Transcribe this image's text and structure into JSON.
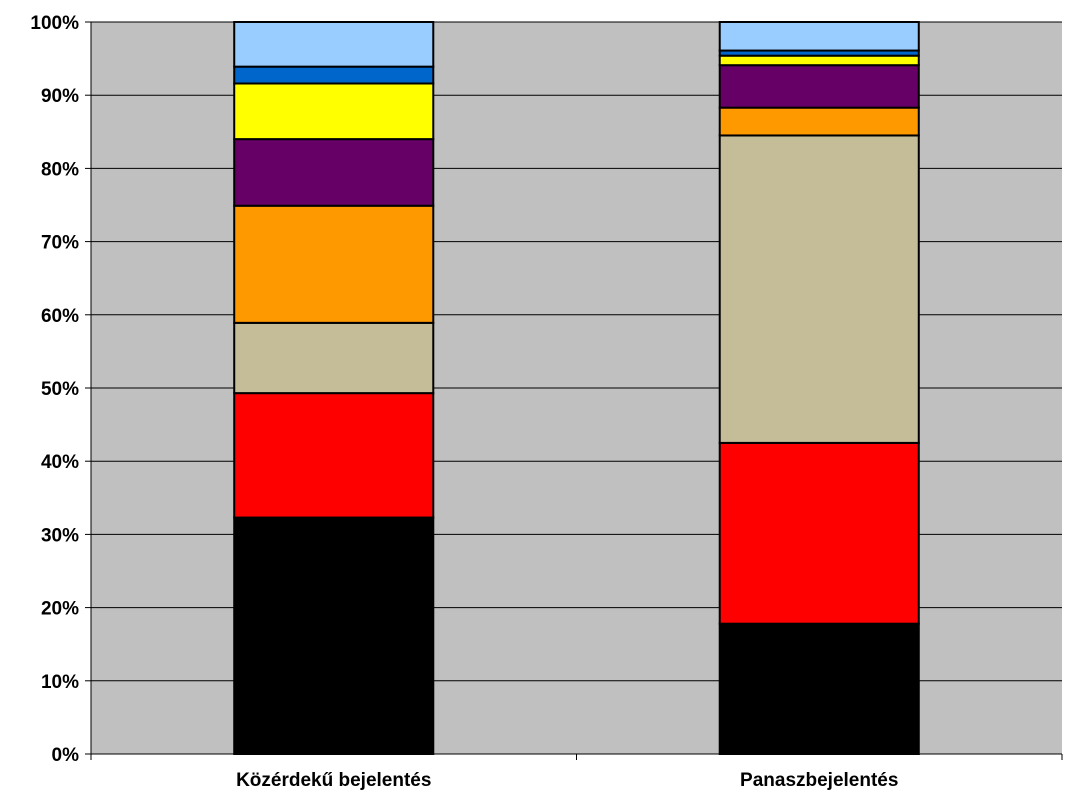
{
  "chart_data": {
    "type": "bar",
    "stacked": true,
    "percent": true,
    "categories": [
      "Közérdekű bejelentés",
      "Panaszbejelentés"
    ],
    "series": [
      {
        "color": "#000000",
        "values": [
          32.3,
          17.8
        ]
      },
      {
        "color": "#ff0000",
        "values": [
          17.0,
          24.7
        ]
      },
      {
        "color": "#c4bd97",
        "values": [
          9.6,
          42.0
        ]
      },
      {
        "color": "#ff9900",
        "values": [
          16.0,
          3.8
        ]
      },
      {
        "color": "#660066",
        "values": [
          9.1,
          5.8
        ]
      },
      {
        "color": "#ffff00",
        "values": [
          7.6,
          1.3
        ]
      },
      {
        "color": "#0066cc",
        "values": [
          2.3,
          0.7
        ]
      },
      {
        "color": "#99ccff",
        "values": [
          6.1,
          3.9
        ]
      }
    ],
    "y_ticks": [
      "0%",
      "10%",
      "20%",
      "30%",
      "40%",
      "50%",
      "60%",
      "70%",
      "80%",
      "90%",
      "100%"
    ],
    "ylim": [
      0,
      100
    ],
    "grid": true,
    "plot_background": "#c0c0c0",
    "legend": "none"
  }
}
